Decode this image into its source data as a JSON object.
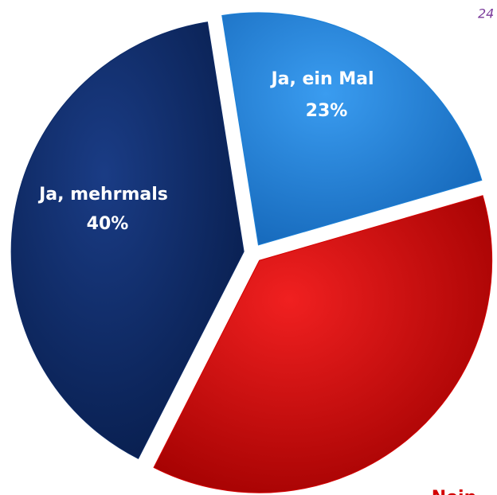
{
  "chart_data": {
    "type": "pie",
    "annotation": "24",
    "categories": [
      "Ja, ein Mal",
      "Nein",
      "Ja, mehrmals"
    ],
    "values": [
      23,
      37,
      40
    ],
    "value_labels": [
      "23%",
      null,
      "40%"
    ],
    "colors": [
      "#1a7fd6",
      "#d40000",
      "#0d2a66"
    ],
    "start_angle": -9
  }
}
